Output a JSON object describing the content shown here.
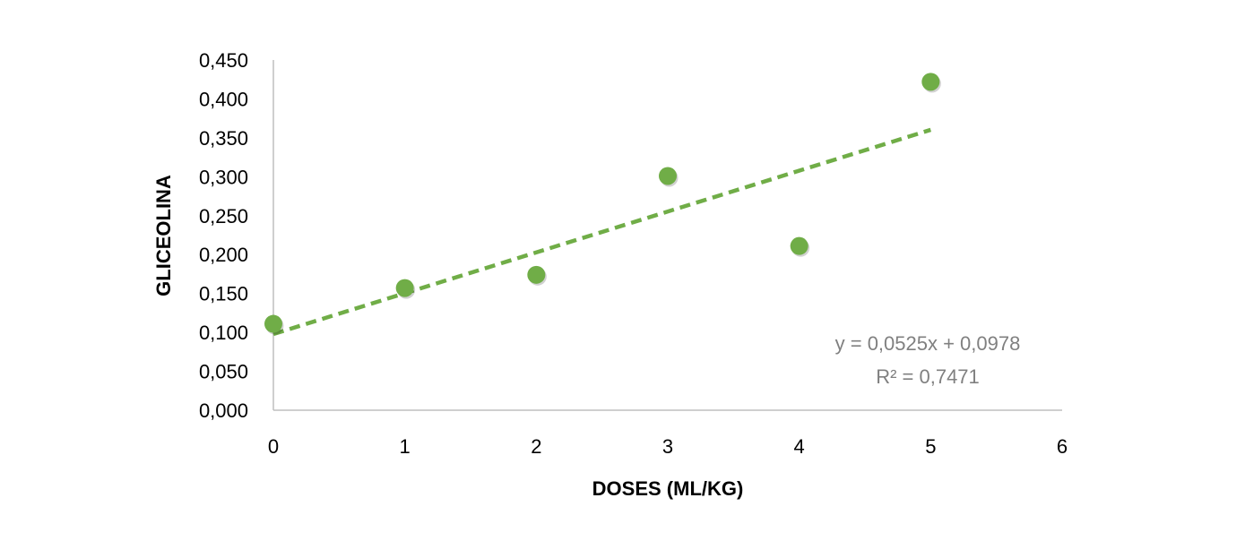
{
  "chart_data": {
    "type": "scatter",
    "title": "",
    "xlabel": "DOSES (ML/KG)",
    "ylabel": "GLICEOLINA",
    "xlim": [
      0,
      6
    ],
    "ylim": [
      0,
      0.45
    ],
    "x_ticks": [
      "0",
      "1",
      "2",
      "3",
      "4",
      "5",
      "6"
    ],
    "y_ticks": [
      "0,000",
      "0,050",
      "0,100",
      "0,150",
      "0,200",
      "0,250",
      "0,300",
      "0,350",
      "0,400",
      "0,450"
    ],
    "grid": false,
    "legend": "none",
    "series": [
      {
        "x": [
          0,
          1,
          2,
          3,
          4,
          5
        ],
        "y": [
          0.111,
          0.157,
          0.174,
          0.301,
          0.211,
          0.422
        ],
        "color": "#70AD47"
      }
    ],
    "trendline": {
      "type": "linear",
      "slope": 0.0525,
      "intercept": 0.0978,
      "x_range": [
        0,
        5
      ],
      "style": "dashed",
      "color": "#70AD47",
      "equation_label": "y = 0,0525x + 0,0978",
      "r2_label": "R² = 0,7471"
    },
    "annotation_color": "#808080",
    "axis_color": "#BFBFBF"
  }
}
